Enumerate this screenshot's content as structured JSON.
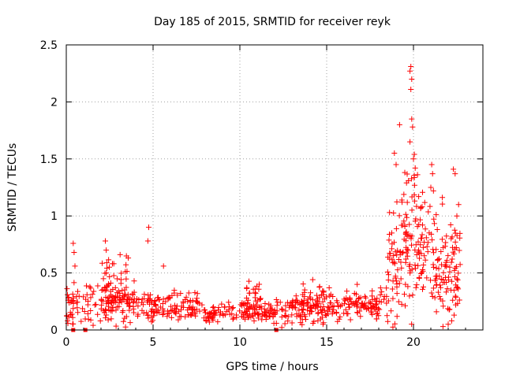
{
  "chart_data": {
    "type": "scatter",
    "title": "Day 185 of 2015, SRMTID for receiver reyk",
    "xlabel": "GPS time / hours",
    "ylabel": "SRMTID / TECUs",
    "xlim": [
      0,
      24
    ],
    "ylim": [
      0,
      2.5
    ],
    "xticks": [
      0,
      5,
      10,
      15,
      20
    ],
    "yticks": [
      0,
      0.5,
      1,
      1.5,
      2,
      2.5
    ],
    "xtick_labels": [
      "0",
      "5",
      "10",
      "15",
      "20"
    ],
    "ytick_labels": [
      "0",
      "0.5",
      "1",
      "1.5",
      "2",
      "2.5"
    ],
    "grid": true,
    "marker": "+",
    "series": [
      {
        "name": "reyk",
        "color": "#ff0000",
        "segments": [
          {
            "t0": 0.0,
            "t1": 4.0,
            "base": 0.22,
            "spread": 0.14,
            "n": 120
          },
          {
            "t0": 2.0,
            "t1": 3.6,
            "base": 0.38,
            "spread": 0.2,
            "n": 70
          },
          {
            "t0": 4.0,
            "t1": 8.0,
            "base": 0.2,
            "spread": 0.1,
            "n": 130
          },
          {
            "t0": 8.0,
            "t1": 12.0,
            "base": 0.15,
            "spread": 0.07,
            "n": 120
          },
          {
            "t0": 10.3,
            "t1": 11.2,
            "base": 0.28,
            "spread": 0.1,
            "n": 30
          },
          {
            "t0": 12.0,
            "t1": 16.0,
            "base": 0.18,
            "spread": 0.09,
            "n": 120
          },
          {
            "t0": 13.5,
            "t1": 15.2,
            "base": 0.27,
            "spread": 0.1,
            "n": 45
          },
          {
            "t0": 16.0,
            "t1": 18.5,
            "base": 0.22,
            "spread": 0.1,
            "n": 90
          },
          {
            "t0": 18.5,
            "t1": 19.3,
            "base": 0.55,
            "spread": 0.35,
            "n": 50
          },
          {
            "t0": 19.3,
            "t1": 21.0,
            "base": 0.75,
            "spread": 0.45,
            "n": 110
          },
          {
            "t0": 21.0,
            "t1": 22.0,
            "base": 0.55,
            "spread": 0.35,
            "n": 60
          },
          {
            "t0": 22.0,
            "t1": 22.7,
            "base": 0.55,
            "spread": 0.35,
            "n": 45
          }
        ],
        "peaks": [
          {
            "x": 0.4,
            "y": 0.76
          },
          {
            "x": 0.45,
            "y": 0.68
          },
          {
            "x": 0.5,
            "y": 0.56
          },
          {
            "x": 2.25,
            "y": 0.78
          },
          {
            "x": 2.3,
            "y": 0.7
          },
          {
            "x": 3.1,
            "y": 0.66
          },
          {
            "x": 4.75,
            "y": 0.9
          },
          {
            "x": 4.7,
            "y": 0.78
          },
          {
            "x": 5.6,
            "y": 0.56
          },
          {
            "x": 18.9,
            "y": 1.55
          },
          {
            "x": 19.0,
            "y": 1.45
          },
          {
            "x": 19.2,
            "y": 1.8
          },
          {
            "x": 19.5,
            "y": 1.38
          },
          {
            "x": 19.6,
            "y": 1.29
          },
          {
            "x": 19.85,
            "y": 2.31
          },
          {
            "x": 19.8,
            "y": 2.27
          },
          {
            "x": 19.9,
            "y": 2.2
          },
          {
            "x": 19.85,
            "y": 2.11
          },
          {
            "x": 19.9,
            "y": 1.85
          },
          {
            "x": 19.95,
            "y": 1.78
          },
          {
            "x": 19.8,
            "y": 1.65
          },
          {
            "x": 20.05,
            "y": 1.54
          },
          {
            "x": 20.0,
            "y": 1.5
          },
          {
            "x": 20.1,
            "y": 1.42
          },
          {
            "x": 20.3,
            "y": 1.17
          },
          {
            "x": 20.5,
            "y": 1.08
          },
          {
            "x": 21.05,
            "y": 1.45
          },
          {
            "x": 21.1,
            "y": 1.37
          },
          {
            "x": 21.0,
            "y": 1.25
          },
          {
            "x": 21.15,
            "y": 1.22
          },
          {
            "x": 22.3,
            "y": 1.41
          },
          {
            "x": 22.4,
            "y": 1.37
          },
          {
            "x": 22.6,
            "y": 1.1
          },
          {
            "x": 22.5,
            "y": 1.0
          },
          {
            "x": 21.7,
            "y": 0.03
          },
          {
            "x": 22.0,
            "y": 0.05
          },
          {
            "x": 22.2,
            "y": 0.08
          }
        ],
        "zeros": [
          0.4,
          1.1,
          12.1
        ]
      }
    ]
  }
}
